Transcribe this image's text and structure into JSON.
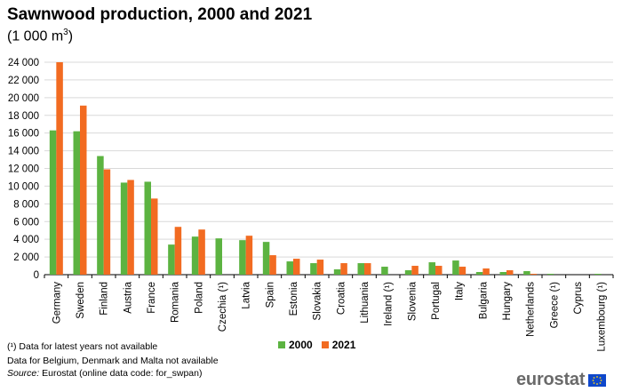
{
  "title": "Sawnwood production, 2000 and 2021",
  "subtitle": "(1 000 m",
  "subtitle_sup": "3",
  "subtitle_close": ")",
  "footnotes": {
    "latest_years": "(¹) Data for latest years not available",
    "missing": "Data for Belgium,  Denmark and Malta not available",
    "source_label": "Source:",
    "source_text": " Eurostat (online data code: for_swpan)"
  },
  "logo": {
    "text": "eurostat",
    "flag_icon": "eu-flag-icon"
  },
  "legend": [
    {
      "name": "2000",
      "color": "#5cb341"
    },
    {
      "name": "2021",
      "color": "#f26b21"
    }
  ],
  "chart_data": {
    "type": "bar",
    "categories": [
      "Germany",
      "Sweden",
      "Finland",
      "Austria",
      "France",
      "Romania",
      "Poland",
      "Czechia (¹)",
      "Latvia",
      "Spain",
      "Estonia",
      "Slovakia",
      "Croatia",
      "Lithuania",
      "Ireland (¹)",
      "Slovenia",
      "Portugal",
      "Italy",
      "Bulgaria",
      "Hungary",
      "Netherlands",
      "Greece (¹)",
      "Cyprus",
      "Luxembourg (¹)"
    ],
    "series": [
      {
        "name": "2000",
        "color": "#5cb341",
        "values": [
          16300,
          16200,
          13400,
          10400,
          10500,
          3400,
          4300,
          4100,
          3900,
          3700,
          1500,
          1300,
          600,
          1300,
          900,
          500,
          1400,
          1600,
          300,
          300,
          400,
          100,
          0,
          100
        ]
      },
      {
        "name": "2021",
        "color": "#f26b21",
        "values": [
          24000,
          19100,
          11900,
          10700,
          8600,
          5400,
          5100,
          0,
          4400,
          2200,
          1800,
          1700,
          1300,
          1300,
          0,
          1000,
          1000,
          900,
          700,
          500,
          100,
          0,
          0,
          0
        ]
      }
    ],
    "ylim": [
      0,
      24000
    ],
    "yticks": [
      "0",
      "2 000",
      "4 000",
      "6 000",
      "8 000",
      "10 000",
      "12 000",
      "14 000",
      "16 000",
      "18 000",
      "20 000",
      "22 000",
      "24 000"
    ],
    "grid": true
  }
}
